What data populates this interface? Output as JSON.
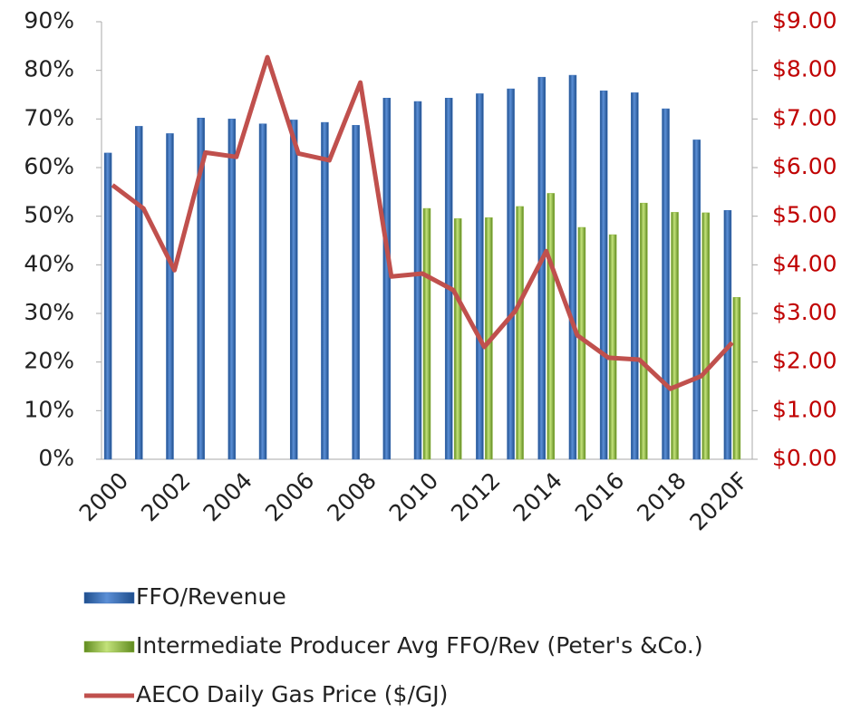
{
  "chart_data": {
    "type": "bar",
    "categories": [
      "2000",
      null,
      "2002",
      null,
      "2004",
      null,
      "2006",
      null,
      "2008",
      null,
      "2010",
      null,
      "2012",
      null,
      "2014",
      null,
      "2016",
      null,
      "2018",
      null,
      "2020F"
    ],
    "series": [
      {
        "name": "FFO/Revenue",
        "type": "bar",
        "color": "#3a6fb8",
        "values": [
          63,
          68.5,
          67,
          70.2,
          70,
          69,
          69.8,
          69.3,
          68.7,
          74.3,
          73.6,
          74.3,
          75.2,
          76.2,
          78.6,
          79,
          75.8,
          75.4,
          72.1,
          65.7,
          51.2
        ]
      },
      {
        "name": "Intermediate Producer Avg FFO/Rev (Peter's &Co.)",
        "type": "bar",
        "color": "#8cb43c",
        "values": [
          null,
          null,
          null,
          null,
          null,
          null,
          null,
          null,
          null,
          null,
          51.6,
          49.5,
          49.7,
          52,
          54.7,
          47.7,
          46.2,
          52.7,
          50.8,
          50.7,
          33.3
        ]
      },
      {
        "name": "AECO Daily Gas Price ($/GJ)",
        "type": "line",
        "axis": "y2",
        "color": "#c0504d",
        "values": [
          5.64,
          5.16,
          3.89,
          6.31,
          6.22,
          8.27,
          6.29,
          6.15,
          7.75,
          3.76,
          3.82,
          3.48,
          2.31,
          3.05,
          4.28,
          2.55,
          2.09,
          2.05,
          1.45,
          1.71,
          2.4
        ]
      }
    ],
    "ylim": [
      0,
      90
    ],
    "yticks": [
      {
        "value": 0,
        "label": "0%"
      },
      {
        "value": 10,
        "label": "10%"
      },
      {
        "value": 20,
        "label": "20%"
      },
      {
        "value": 30,
        "label": "30%"
      },
      {
        "value": 40,
        "label": "40%"
      },
      {
        "value": 50,
        "label": "50%"
      },
      {
        "value": 60,
        "label": "60%"
      },
      {
        "value": 70,
        "label": "70%"
      },
      {
        "value": 80,
        "label": "80%"
      },
      {
        "value": 90,
        "label": "90%"
      }
    ],
    "y2lim": [
      0,
      9
    ],
    "y2ticks": [
      {
        "value": 0,
        "label": "$0.00"
      },
      {
        "value": 1,
        "label": "$1.00"
      },
      {
        "value": 2,
        "label": "$2.00"
      },
      {
        "value": 3,
        "label": "$3.00"
      },
      {
        "value": 4,
        "label": "$4.00"
      },
      {
        "value": 5,
        "label": "$5.00"
      },
      {
        "value": 6,
        "label": "$6.00"
      },
      {
        "value": 7,
        "label": "$7.00"
      },
      {
        "value": 8,
        "label": "$8.00"
      },
      {
        "value": 9,
        "label": "$9.00"
      }
    ],
    "y2color": "#c00000",
    "grid": false,
    "legend": "bottom"
  }
}
